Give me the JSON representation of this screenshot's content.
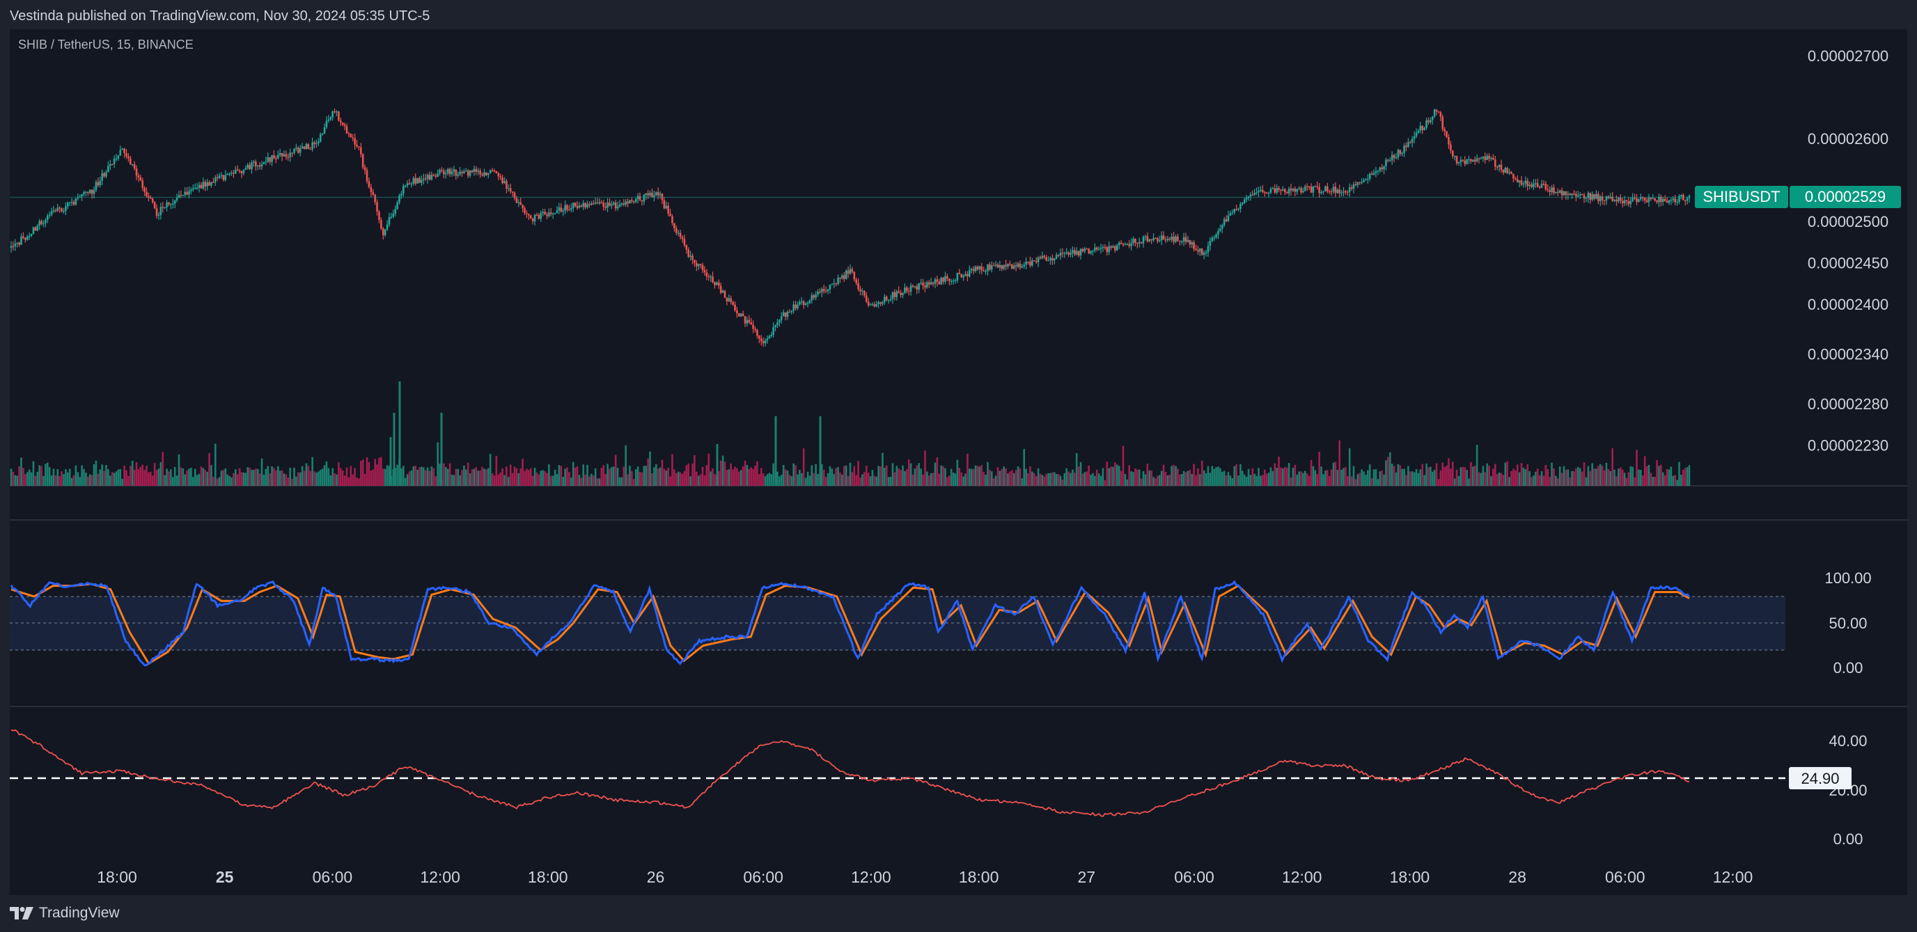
{
  "header": {
    "published": "Vestinda published on TradingView.com, Nov 30, 2024 05:35 UTC-5"
  },
  "footer": {
    "logo_text": "TradingView"
  },
  "chart_data": {
    "type": "candlestick",
    "title": "SHIB / TetherUS, 15, BINANCE",
    "symbol_badge": "SHIBUSDT",
    "last_price": "0.00002529",
    "colors": {
      "background": "#131722",
      "up": "#26a69a",
      "down": "#ef5350",
      "up_volume": "#1b7f6f",
      "down_volume": "#a31e4f",
      "stoch_k": "#2962ff",
      "stoch_d": "#ff7b1a",
      "lower_line": "#ef5350",
      "badge": "#089981"
    },
    "price_axis": {
      "ticks": [
        "0.00002700",
        "0.00002600",
        "0.00002500",
        "0.00002450",
        "0.00002400",
        "0.00002340",
        "0.00002280",
        "0.00002230"
      ]
    },
    "time_axis": {
      "ticks": [
        "18:00",
        "25",
        "06:00",
        "12:00",
        "18:00",
        "26",
        "06:00",
        "12:00",
        "18:00",
        "27",
        "06:00",
        "12:00",
        "18:00",
        "28",
        "06:00",
        "12:00"
      ],
      "bold_ticks": [
        "25"
      ]
    },
    "price_waypoints": [
      [
        0,
        2.468e-05
      ],
      [
        20,
        2.508e-05
      ],
      [
        40,
        2.537e-05
      ],
      [
        55,
        2.59e-05
      ],
      [
        72,
        2.51e-05
      ],
      [
        90,
        2.54e-05
      ],
      [
        120,
        2.568e-05
      ],
      [
        150,
        2.593e-05
      ],
      [
        160,
        2.633e-05
      ],
      [
        172,
        2.585e-05
      ],
      [
        184,
        2.487e-05
      ],
      [
        195,
        2.545e-05
      ],
      [
        215,
        2.56e-05
      ],
      [
        240,
        2.558e-05
      ],
      [
        256,
        2.503e-05
      ],
      [
        280,
        2.52e-05
      ],
      [
        300,
        2.518e-05
      ],
      [
        320,
        2.535e-05
      ],
      [
        335,
        2.46e-05
      ],
      [
        350,
        2.42e-05
      ],
      [
        362,
        2.383e-05
      ],
      [
        372,
        2.355e-05
      ],
      [
        385,
        2.395e-05
      ],
      [
        400,
        2.412e-05
      ],
      [
        415,
        2.44e-05
      ],
      [
        425,
        2.396e-05
      ],
      [
        440,
        2.415e-05
      ],
      [
        460,
        2.428e-05
      ],
      [
        480,
        2.443e-05
      ],
      [
        500,
        2.448e-05
      ],
      [
        520,
        2.46e-05
      ],
      [
        540,
        2.465e-05
      ],
      [
        560,
        2.478e-05
      ],
      [
        580,
        2.48e-05
      ],
      [
        590,
        2.46e-05
      ],
      [
        600,
        2.5e-05
      ],
      [
        615,
        2.538e-05
      ],
      [
        640,
        2.538e-05
      ],
      [
        660,
        2.538e-05
      ],
      [
        675,
        2.56e-05
      ],
      [
        690,
        2.59e-05
      ],
      [
        705,
        2.635e-05
      ],
      [
        715,
        2.57e-05
      ],
      [
        730,
        2.578e-05
      ],
      [
        745,
        2.55e-05
      ],
      [
        770,
        2.533e-05
      ],
      [
        800,
        2.524e-05
      ],
      [
        820,
        2.527e-05
      ],
      [
        830,
        2.528e-05
      ]
    ],
    "stoch_rsi": {
      "ticks": [
        "100.00",
        "50.00",
        "0.00"
      ],
      "levels": [
        80,
        50,
        20
      ],
      "k_waypoints": [
        [
          0,
          92
        ],
        [
          10,
          70
        ],
        [
          20,
          95
        ],
        [
          30,
          90
        ],
        [
          40,
          95
        ],
        [
          50,
          92
        ],
        [
          60,
          30
        ],
        [
          70,
          2
        ],
        [
          80,
          20
        ],
        [
          90,
          40
        ],
        [
          97,
          95
        ],
        [
          108,
          70
        ],
        [
          120,
          75
        ],
        [
          128,
          90
        ],
        [
          137,
          95
        ],
        [
          148,
          75
        ],
        [
          156,
          25
        ],
        [
          163,
          90
        ],
        [
          170,
          80
        ],
        [
          178,
          10
        ],
        [
          190,
          10
        ],
        [
          198,
          8
        ],
        [
          208,
          10
        ],
        [
          218,
          88
        ],
        [
          228,
          90
        ],
        [
          240,
          85
        ],
        [
          250,
          50
        ],
        [
          262,
          45
        ],
        [
          275,
          15
        ],
        [
          284,
          35
        ],
        [
          292,
          50
        ],
        [
          305,
          92
        ],
        [
          315,
          85
        ],
        [
          324,
          40
        ],
        [
          334,
          88
        ],
        [
          343,
          20
        ],
        [
          350,
          5
        ],
        [
          360,
          30
        ],
        [
          375,
          35
        ],
        [
          385,
          35
        ],
        [
          393,
          90
        ],
        [
          403,
          95
        ],
        [
          415,
          90
        ],
        [
          430,
          80
        ],
        [
          443,
          10
        ],
        [
          453,
          60
        ],
        [
          470,
          95
        ],
        [
          480,
          90
        ],
        [
          485,
          40
        ],
        [
          495,
          75
        ],
        [
          503,
          20
        ],
        [
          515,
          70
        ],
        [
          525,
          60
        ],
        [
          535,
          80
        ],
        [
          545,
          25
        ],
        [
          560,
          90
        ],
        [
          572,
          60
        ],
        [
          583,
          20
        ],
        [
          593,
          85
        ],
        [
          600,
          10
        ],
        [
          612,
          80
        ],
        [
          623,
          10
        ],
        [
          630,
          88
        ],
        [
          640,
          96
        ],
        [
          655,
          60
        ],
        [
          665,
          10
        ],
        [
          678,
          50
        ],
        [
          685,
          20
        ],
        [
          700,
          80
        ],
        [
          710,
          30
        ],
        [
          720,
          10
        ],
        [
          733,
          85
        ],
        [
          740,
          70
        ],
        [
          748,
          40
        ],
        [
          755,
          60
        ],
        [
          762,
          45
        ],
        [
          770,
          80
        ],
        [
          778,
          10
        ],
        [
          790,
          30
        ],
        [
          800,
          25
        ],
        [
          810,
          10
        ],
        [
          820,
          35
        ],
        [
          828,
          20
        ],
        [
          838,
          85
        ],
        [
          848,
          30
        ],
        [
          858,
          90
        ],
        [
          870,
          90
        ],
        [
          878,
          80
        ]
      ],
      "d_waypoints": [
        [
          0,
          88
        ],
        [
          12,
          80
        ],
        [
          22,
          92
        ],
        [
          32,
          92
        ],
        [
          42,
          94
        ],
        [
          52,
          88
        ],
        [
          62,
          40
        ],
        [
          72,
          5
        ],
        [
          82,
          18
        ],
        [
          92,
          45
        ],
        [
          100,
          88
        ],
        [
          110,
          75
        ],
        [
          122,
          75
        ],
        [
          130,
          85
        ],
        [
          139,
          92
        ],
        [
          150,
          78
        ],
        [
          158,
          35
        ],
        [
          165,
          82
        ],
        [
          172,
          80
        ],
        [
          180,
          18
        ],
        [
          192,
          12
        ],
        [
          200,
          10
        ],
        [
          210,
          15
        ],
        [
          220,
          82
        ],
        [
          230,
          88
        ],
        [
          242,
          82
        ],
        [
          252,
          55
        ],
        [
          264,
          45
        ],
        [
          277,
          20
        ],
        [
          286,
          32
        ],
        [
          294,
          50
        ],
        [
          307,
          88
        ],
        [
          317,
          85
        ],
        [
          326,
          50
        ],
        [
          336,
          80
        ],
        [
          345,
          25
        ],
        [
          352,
          8
        ],
        [
          362,
          25
        ],
        [
          377,
          32
        ],
        [
          387,
          35
        ],
        [
          395,
          82
        ],
        [
          405,
          92
        ],
        [
          417,
          90
        ],
        [
          432,
          80
        ],
        [
          445,
          15
        ],
        [
          455,
          55
        ],
        [
          472,
          90
        ],
        [
          482,
          88
        ],
        [
          487,
          50
        ],
        [
          497,
          70
        ],
        [
          505,
          25
        ],
        [
          517,
          65
        ],
        [
          527,
          62
        ],
        [
          537,
          75
        ],
        [
          547,
          30
        ],
        [
          562,
          85
        ],
        [
          574,
          62
        ],
        [
          585,
          25
        ],
        [
          595,
          78
        ],
        [
          602,
          18
        ],
        [
          614,
          72
        ],
        [
          625,
          15
        ],
        [
          632,
          80
        ],
        [
          642,
          92
        ],
        [
          657,
          62
        ],
        [
          667,
          15
        ],
        [
          680,
          45
        ],
        [
          687,
          22
        ],
        [
          702,
          75
        ],
        [
          712,
          35
        ],
        [
          722,
          15
        ],
        [
          735,
          80
        ],
        [
          742,
          70
        ],
        [
          750,
          45
        ],
        [
          757,
          55
        ],
        [
          764,
          48
        ],
        [
          772,
          75
        ],
        [
          780,
          15
        ],
        [
          792,
          28
        ],
        [
          802,
          25
        ],
        [
          812,
          15
        ],
        [
          822,
          30
        ],
        [
          830,
          25
        ],
        [
          840,
          78
        ],
        [
          850,
          35
        ],
        [
          860,
          85
        ],
        [
          872,
          85
        ],
        [
          878,
          78
        ]
      ]
    },
    "lower_indicator": {
      "ticks": [
        "40.00",
        "20.00",
        "0.00"
      ],
      "current_value": "24.90",
      "waypoints": [
        [
          0,
          45
        ],
        [
          15,
          38
        ],
        [
          35,
          27
        ],
        [
          55,
          28
        ],
        [
          70,
          25
        ],
        [
          95,
          22
        ],
        [
          115,
          14
        ],
        [
          130,
          13
        ],
        [
          140,
          18
        ],
        [
          150,
          23
        ],
        [
          165,
          18
        ],
        [
          180,
          22
        ],
        [
          195,
          30
        ],
        [
          210,
          25
        ],
        [
          230,
          18
        ],
        [
          250,
          13
        ],
        [
          265,
          17
        ],
        [
          280,
          19
        ],
        [
          300,
          16
        ],
        [
          320,
          15
        ],
        [
          335,
          13
        ],
        [
          350,
          25
        ],
        [
          370,
          38
        ],
        [
          380,
          40
        ],
        [
          395,
          37
        ],
        [
          410,
          28
        ],
        [
          425,
          24
        ],
        [
          445,
          25
        ],
        [
          460,
          21
        ],
        [
          480,
          16
        ],
        [
          500,
          15
        ],
        [
          520,
          11
        ],
        [
          540,
          10
        ],
        [
          560,
          11
        ],
        [
          580,
          17
        ],
        [
          595,
          21
        ],
        [
          615,
          27
        ],
        [
          630,
          32
        ],
        [
          645,
          30
        ],
        [
          660,
          30
        ],
        [
          675,
          25
        ],
        [
          690,
          24
        ],
        [
          705,
          28
        ],
        [
          720,
          33
        ],
        [
          735,
          27
        ],
        [
          750,
          19
        ],
        [
          765,
          15
        ],
        [
          780,
          20
        ],
        [
          800,
          26
        ],
        [
          815,
          28
        ],
        [
          830,
          24
        ]
      ]
    }
  }
}
